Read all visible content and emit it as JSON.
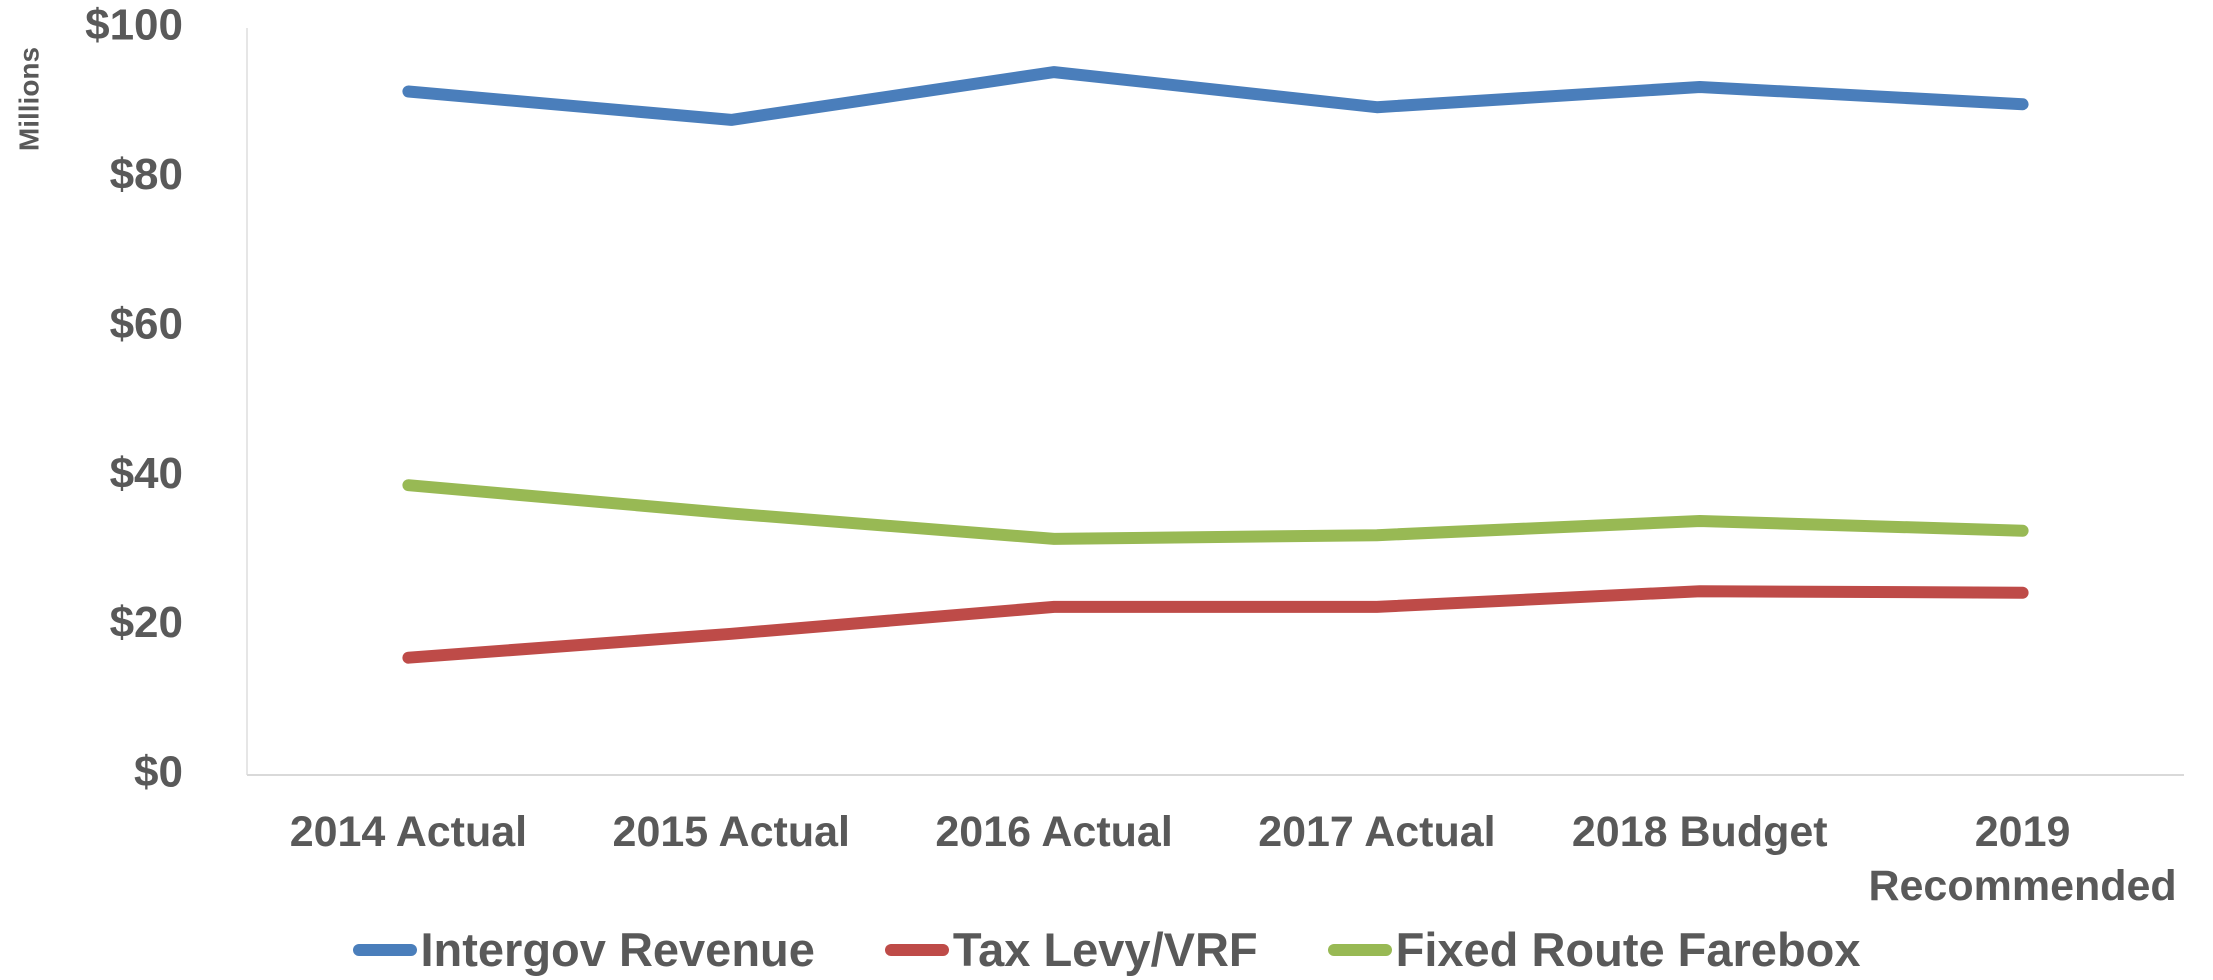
{
  "chart_data": {
    "type": "line",
    "y_label": "Millions",
    "categories": [
      "2014 Actual",
      "2015 Actual",
      "2016 Actual",
      "2017 Actual",
      "2018 Budget",
      "2019 Recommended"
    ],
    "series": [
      {
        "name": "Intergov Revenue",
        "color": "#4a7ebb",
        "values": [
          91.5,
          87.7,
          94.1,
          89.4,
          92.1,
          89.8
        ]
      },
      {
        "name": "Tax Levy/VRF",
        "color": "#be4b48",
        "values": [
          15.7,
          18.9,
          22.5,
          22.5,
          24.6,
          24.4
        ]
      },
      {
        "name": "Fixed Route Farebox",
        "color": "#98b954",
        "values": [
          38.8,
          35.0,
          31.6,
          32.1,
          34.0,
          32.7
        ]
      }
    ],
    "ylim": [
      0,
      100
    ],
    "yticks": [
      {
        "value": 0,
        "label": "$0"
      },
      {
        "value": 20,
        "label": "$20"
      },
      {
        "value": 40,
        "label": "$40"
      },
      {
        "value": 60,
        "label": "$60"
      },
      {
        "value": 80,
        "label": "$80"
      },
      {
        "value": 100,
        "label": "$100"
      }
    ],
    "grid": false,
    "legend": "bottom"
  }
}
